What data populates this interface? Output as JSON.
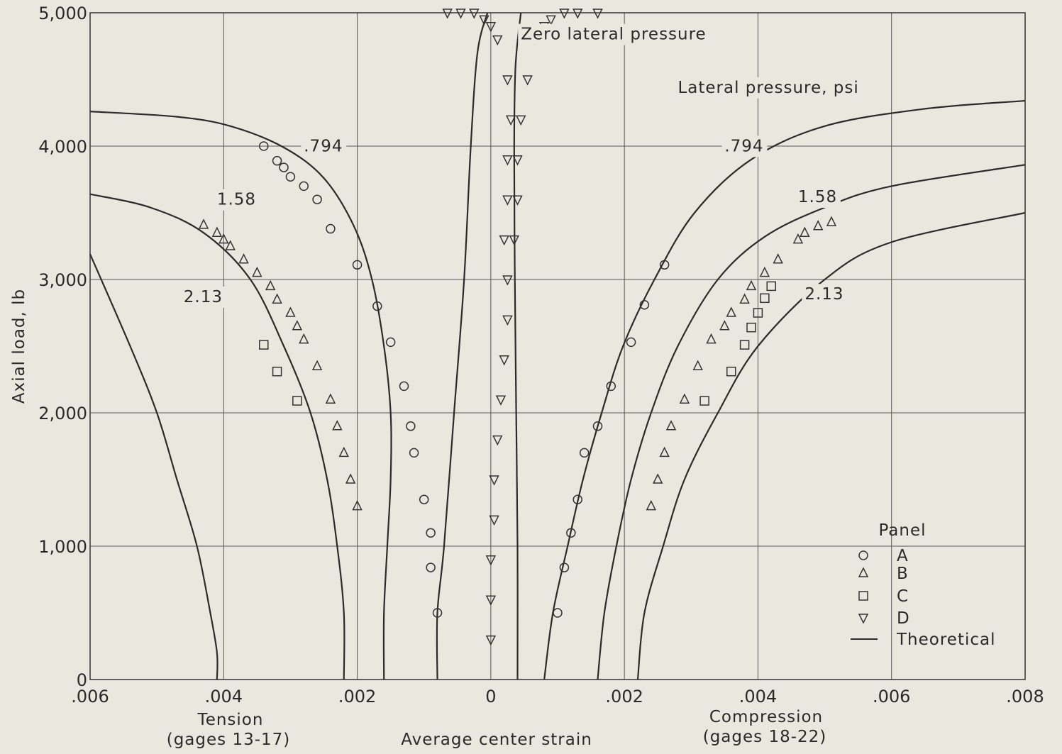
{
  "chart_data": {
    "type": "scatter",
    "xlabel": "Average center strain",
    "ylabel": "Axial load, lb",
    "x_left_label": "Tension",
    "x_left_sublabel": "(gages 13-17)",
    "x_right_label": "Compression",
    "x_right_sublabel": "(gages 18-22)",
    "xlim": [
      -0.006,
      0.008
    ],
    "ylim": [
      0,
      5000
    ],
    "x_ticks": [
      {
        "value": -0.006,
        "label": ".006"
      },
      {
        "value": -0.004,
        "label": ".004"
      },
      {
        "value": -0.002,
        "label": ".002"
      },
      {
        "value": 0,
        "label": "0"
      },
      {
        "value": 0.002,
        "label": ".002"
      },
      {
        "value": 0.004,
        "label": ".004"
      },
      {
        "value": 0.006,
        "label": ".006"
      },
      {
        "value": 0.008,
        "label": ".008"
      }
    ],
    "y_ticks": [
      {
        "value": 0,
        "label": "0"
      },
      {
        "value": 1000,
        "label": "1,000"
      },
      {
        "value": 2000,
        "label": "2,000"
      },
      {
        "value": 3000,
        "label": "3,000"
      },
      {
        "value": 4000,
        "label": "4,000"
      },
      {
        "value": 5000,
        "label": "5,000"
      }
    ],
    "grid": true,
    "annotations": [
      {
        "text": "Zero lateral pressure",
        "x": 0.00045,
        "y": 4800
      },
      {
        "text": "Lateral pressure, psi",
        "x": 0.0028,
        "y": 4400
      },
      {
        "text": ".794",
        "x": -0.0028,
        "y": 3960
      },
      {
        "text": ".794",
        "x": 0.0035,
        "y": 3960
      },
      {
        "text": "1.58",
        "x": -0.0041,
        "y": 3560
      },
      {
        "text": "1.58",
        "x": 0.0046,
        "y": 3580
      },
      {
        "text": "2.13",
        "x": -0.0046,
        "y": 2830
      },
      {
        "text": "2.13",
        "x": 0.0047,
        "y": 2850
      }
    ],
    "legend": {
      "title": "Panel",
      "position": "lower-right",
      "entries": [
        {
          "marker": "circle",
          "label": "A"
        },
        {
          "marker": "triangle-up",
          "label": "B"
        },
        {
          "marker": "square",
          "label": "C"
        },
        {
          "marker": "triangle-down",
          "label": "D"
        },
        {
          "marker": "line",
          "label": "Theoretical"
        }
      ]
    },
    "theoretical_curves": [
      {
        "pressure": "0",
        "side": "left",
        "points": [
          [
            -0.0008,
            0
          ],
          [
            -0.0008,
            500
          ],
          [
            -0.0007,
            1000
          ],
          [
            -0.00055,
            2000
          ],
          [
            -0.0004,
            3000
          ],
          [
            -0.0003,
            4000
          ],
          [
            -0.0002,
            4700
          ],
          [
            -5e-05,
            5000
          ]
        ]
      },
      {
        "pressure": "0",
        "side": "right",
        "points": [
          [
            0.0004,
            0
          ],
          [
            0.0004,
            1000
          ],
          [
            0.00038,
            2000
          ],
          [
            0.00036,
            3000
          ],
          [
            0.00035,
            4000
          ],
          [
            0.00037,
            4600
          ],
          [
            0.00045,
            5000
          ]
        ]
      },
      {
        "pressure": ".794",
        "side": "left",
        "points": [
          [
            -0.0016,
            0
          ],
          [
            -0.0016,
            500
          ],
          [
            -0.00155,
            1000
          ],
          [
            -0.0015,
            1500
          ],
          [
            -0.0015,
            2000
          ],
          [
            -0.0016,
            2500
          ],
          [
            -0.00178,
            3000
          ],
          [
            -0.00205,
            3400
          ],
          [
            -0.0025,
            3760
          ],
          [
            -0.0031,
            3990
          ],
          [
            -0.0039,
            4150
          ],
          [
            -0.0047,
            4220
          ],
          [
            -0.006,
            4260
          ]
        ]
      },
      {
        "pressure": ".794",
        "side": "right",
        "points": [
          [
            0.0008,
            0
          ],
          [
            0.00093,
            500
          ],
          [
            0.00115,
            1000
          ],
          [
            0.00138,
            1500
          ],
          [
            0.00166,
            2000
          ],
          [
            0.00198,
            2500
          ],
          [
            0.00245,
            3000
          ],
          [
            0.00305,
            3500
          ],
          [
            0.0039,
            3900
          ],
          [
            0.005,
            4150
          ],
          [
            0.0065,
            4280
          ],
          [
            0.008,
            4340
          ]
        ]
      },
      {
        "pressure": "1.58",
        "side": "left",
        "points": [
          [
            -0.0022,
            0
          ],
          [
            -0.0022,
            500
          ],
          [
            -0.0023,
            1000
          ],
          [
            -0.00245,
            1500
          ],
          [
            -0.0027,
            2000
          ],
          [
            -0.0031,
            2500
          ],
          [
            -0.0036,
            3000
          ],
          [
            -0.0043,
            3350
          ],
          [
            -0.0051,
            3540
          ],
          [
            -0.006,
            3640
          ]
        ]
      },
      {
        "pressure": "1.58",
        "side": "right",
        "points": [
          [
            0.0016,
            0
          ],
          [
            0.0017,
            500
          ],
          [
            0.00188,
            1000
          ],
          [
            0.0021,
            1500
          ],
          [
            0.0024,
            2000
          ],
          [
            0.0028,
            2500
          ],
          [
            0.0034,
            3000
          ],
          [
            0.0041,
            3320
          ],
          [
            0.005,
            3540
          ],
          [
            0.006,
            3700
          ],
          [
            0.008,
            3860
          ]
        ]
      },
      {
        "pressure": "2.13",
        "side": "left",
        "points": [
          [
            -0.0041,
            0
          ],
          [
            -0.0041,
            200
          ],
          [
            -0.0042,
            500
          ],
          [
            -0.0044,
            1000
          ],
          [
            -0.0047,
            1500
          ],
          [
            -0.005,
            2000
          ],
          [
            -0.0054,
            2500
          ],
          [
            -0.006,
            3190
          ]
        ]
      },
      {
        "pressure": "2.13",
        "side": "right",
        "points": [
          [
            0.0022,
            0
          ],
          [
            0.0023,
            500
          ],
          [
            0.00258,
            1000
          ],
          [
            0.0029,
            1500
          ],
          [
            0.0034,
            2000
          ],
          [
            0.004,
            2500
          ],
          [
            0.005,
            3000
          ],
          [
            0.006,
            3280
          ],
          [
            0.008,
            3500
          ]
        ]
      }
    ],
    "series": [
      {
        "name": "A",
        "marker": "circle",
        "points": [
          [
            -0.0034,
            4000
          ],
          [
            -0.0032,
            3890
          ],
          [
            -0.0031,
            3840
          ],
          [
            -0.003,
            3770
          ],
          [
            -0.0028,
            3700
          ],
          [
            -0.0026,
            3600
          ],
          [
            -0.0024,
            3380
          ],
          [
            -0.002,
            3110
          ],
          [
            -0.0017,
            2800
          ],
          [
            -0.0015,
            2530
          ],
          [
            -0.0013,
            2200
          ],
          [
            -0.0012,
            1900
          ],
          [
            -0.00115,
            1700
          ],
          [
            -0.001,
            1350
          ],
          [
            -0.0009,
            1100
          ],
          [
            -0.0009,
            840
          ],
          [
            -0.0008,
            500
          ],
          [
            0.001,
            500
          ],
          [
            0.0011,
            840
          ],
          [
            0.0012,
            1100
          ],
          [
            0.0013,
            1350
          ],
          [
            0.0014,
            1700
          ],
          [
            0.0016,
            1900
          ],
          [
            0.0018,
            2200
          ],
          [
            0.0021,
            2530
          ],
          [
            0.0023,
            2810
          ],
          [
            0.0026,
            3110
          ]
        ]
      },
      {
        "name": "B",
        "marker": "triangle-up",
        "points": [
          [
            -0.0043,
            3410
          ],
          [
            -0.0041,
            3350
          ],
          [
            -0.004,
            3300
          ],
          [
            -0.0039,
            3250
          ],
          [
            -0.0037,
            3150
          ],
          [
            -0.0035,
            3050
          ],
          [
            -0.0033,
            2950
          ],
          [
            -0.0032,
            2850
          ],
          [
            -0.003,
            2750
          ],
          [
            -0.0029,
            2650
          ],
          [
            -0.0028,
            2550
          ],
          [
            -0.0026,
            2350
          ],
          [
            -0.0024,
            2100
          ],
          [
            -0.0023,
            1900
          ],
          [
            -0.0022,
            1700
          ],
          [
            -0.0021,
            1500
          ],
          [
            -0.002,
            1300
          ],
          [
            0.0024,
            1300
          ],
          [
            0.0025,
            1500
          ],
          [
            0.0026,
            1700
          ],
          [
            0.0027,
            1900
          ],
          [
            0.0029,
            2100
          ],
          [
            0.0031,
            2350
          ],
          [
            0.0033,
            2550
          ],
          [
            0.0035,
            2650
          ],
          [
            0.0036,
            2750
          ],
          [
            0.0038,
            2850
          ],
          [
            0.0039,
            2950
          ],
          [
            0.0041,
            3050
          ],
          [
            0.0043,
            3150
          ],
          [
            0.0046,
            3300
          ],
          [
            0.0047,
            3350
          ],
          [
            0.0049,
            3400
          ],
          [
            0.0051,
            3430
          ]
        ]
      },
      {
        "name": "C",
        "marker": "square",
        "points": [
          [
            -0.0034,
            2510
          ],
          [
            -0.0032,
            2310
          ],
          [
            -0.0029,
            2090
          ],
          [
            0.0032,
            2090
          ],
          [
            0.0036,
            2310
          ],
          [
            0.0038,
            2510
          ],
          [
            0.0039,
            2640
          ],
          [
            0.004,
            2750
          ],
          [
            0.0041,
            2860
          ],
          [
            0.0042,
            2950
          ]
        ]
      },
      {
        "name": "D",
        "marker": "triangle-down",
        "points": [
          [
            -0.00065,
            5000
          ],
          [
            -0.00045,
            5000
          ],
          [
            -0.00025,
            5000
          ],
          [
            -0.0001,
            4950
          ],
          [
            0,
            4900
          ],
          [
            0.0001,
            4800
          ],
          [
            0.00065,
            4800
          ],
          [
            0.0008,
            4900
          ],
          [
            0.0009,
            4950
          ],
          [
            0.0011,
            5000
          ],
          [
            0.0013,
            5000
          ],
          [
            0.0016,
            5000
          ],
          [
            0.00025,
            4500
          ],
          [
            0.00055,
            4500
          ],
          [
            0.0003,
            4200
          ],
          [
            0.00045,
            4200
          ],
          [
            0.00025,
            3900
          ],
          [
            0.0004,
            3900
          ],
          [
            0.00025,
            3600
          ],
          [
            0.0004,
            3600
          ],
          [
            0.0002,
            3300
          ],
          [
            0.00035,
            3300
          ],
          [
            0.00025,
            3000
          ],
          [
            0.00025,
            2700
          ],
          [
            0.0002,
            2400
          ],
          [
            0.00015,
            2100
          ],
          [
            0.0001,
            1800
          ],
          [
            5e-05,
            1500
          ],
          [
            5e-05,
            1200
          ],
          [
            0,
            900
          ],
          [
            0,
            600
          ],
          [
            0,
            300
          ]
        ]
      }
    ]
  }
}
